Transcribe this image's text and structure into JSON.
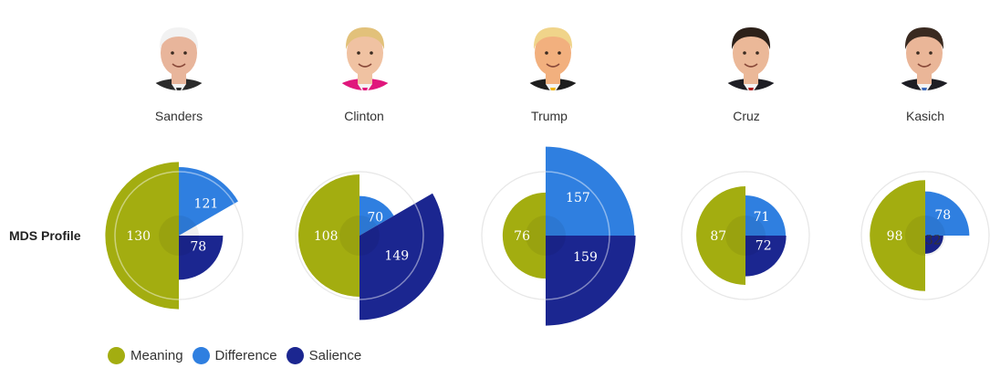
{
  "row_label": "MDS Profile",
  "colors": {
    "meaning": "#a3ad10",
    "difference": "#2f7fe0",
    "salience": "#1b2690",
    "ring": "#d3d3d3"
  },
  "legend": [
    {
      "key": "meaning",
      "label": "Meaning",
      "color": "#a3ad10"
    },
    {
      "key": "difference",
      "label": "Difference",
      "color": "#2f7fe0"
    },
    {
      "key": "salience",
      "label": "Salience",
      "color": "#1b2690"
    }
  ],
  "candidates": [
    {
      "name": "Sanders",
      "skin": "#e8b59b",
      "hair": "#f2f2f2",
      "suit": "#2b2b2b",
      "accent": "#2b2b2b"
    },
    {
      "name": "Clinton",
      "skin": "#f0c2a2",
      "hair": "#e2c17a",
      "suit": "#e0177c",
      "accent": "#e0177c"
    },
    {
      "name": "Trump",
      "skin": "#f2b07e",
      "hair": "#f0d48a",
      "suit": "#1e1e1e",
      "accent": "#f0b400"
    },
    {
      "name": "Cruz",
      "skin": "#ebb898",
      "hair": "#2c2019",
      "suit": "#1e1e24",
      "accent": "#b01c1c"
    },
    {
      "name": "Kasich",
      "skin": "#eab698",
      "hair": "#3a2a20",
      "suit": "#1e1e24",
      "accent": "#3a68b8"
    }
  ],
  "chart_data": {
    "type": "polar-area",
    "series_order": [
      "meaning",
      "difference",
      "salience"
    ],
    "charts": [
      {
        "candidate": "Sanders",
        "meaning": 130,
        "difference": 121,
        "salience": 78
      },
      {
        "candidate": "Clinton",
        "meaning": 108,
        "difference": 70,
        "salience": 149
      },
      {
        "candidate": "Trump",
        "meaning": 76,
        "difference": 157,
        "salience": 159
      },
      {
        "candidate": "Cruz",
        "meaning": 87,
        "difference": 71,
        "salience": 72
      },
      {
        "candidate": "Kasich",
        "meaning": 98,
        "difference": 78,
        "salience": 32
      }
    ]
  }
}
